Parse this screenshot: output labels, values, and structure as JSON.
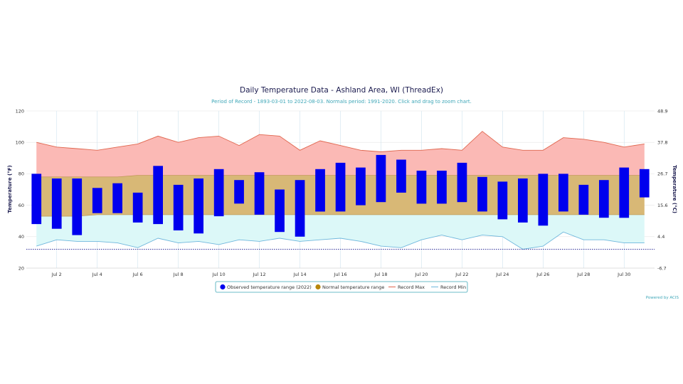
{
  "chart_data": {
    "type": "bar",
    "title": "Daily Temperature Data - Ashland Area, WI (ThreadEx)",
    "subtitle": "Period of Record - 1893-03-01 to 2022-08-03. Normals period: 1991-2020. Click and drag to zoom chart.",
    "ylabel": "Temperature (°F)",
    "y2label": "Temperature (°C)",
    "ylim": [
      20,
      120
    ],
    "yticks": [
      "20",
      "40",
      "60",
      "80",
      "100",
      "120"
    ],
    "y2ticks": [
      "-6.7",
      "4.4",
      "15.6",
      "26.7",
      "37.8",
      "48.9"
    ],
    "xlim": [
      0.5,
      31.5
    ],
    "xticks": [
      {
        "day": 2,
        "label": "Jul 2"
      },
      {
        "day": 4,
        "label": "Jul 4"
      },
      {
        "day": 6,
        "label": "Jul 6"
      },
      {
        "day": 8,
        "label": "Jul 8"
      },
      {
        "day": 10,
        "label": "Jul 10"
      },
      {
        "day": 12,
        "label": "Jul 12"
      },
      {
        "day": 14,
        "label": "Jul 14"
      },
      {
        "day": 16,
        "label": "Jul 16"
      },
      {
        "day": 18,
        "label": "Jul 18"
      },
      {
        "day": 20,
        "label": "Jul 20"
      },
      {
        "day": 22,
        "label": "Jul 22"
      },
      {
        "day": 24,
        "label": "Jul 24"
      },
      {
        "day": 26,
        "label": "Jul 26"
      },
      {
        "day": 28,
        "label": "Jul 28"
      },
      {
        "day": 30,
        "label": "Jul 30"
      }
    ],
    "freezing_line": 32,
    "days": [
      1,
      2,
      3,
      4,
      5,
      6,
      7,
      8,
      9,
      10,
      11,
      12,
      13,
      14,
      15,
      16,
      17,
      18,
      19,
      20,
      21,
      22,
      23,
      24,
      25,
      26,
      27,
      28,
      29,
      30,
      31
    ],
    "series": [
      {
        "name": "Observed temperature range (2022)",
        "color": "#0000ee",
        "low": [
          48,
          45,
          41,
          55,
          55,
          49,
          48,
          44,
          42,
          53,
          61,
          54,
          43,
          40,
          56,
          56,
          60,
          62,
          68,
          61,
          61,
          62,
          56,
          51,
          49,
          47,
          56,
          54,
          52,
          52,
          65
        ],
        "high": [
          80,
          77,
          77,
          71,
          74,
          68,
          85,
          73,
          77,
          83,
          76,
          81,
          70,
          76,
          83,
          87,
          84,
          92,
          89,
          82,
          82,
          87,
          78,
          75,
          77,
          80,
          80,
          73,
          76,
          84,
          83
        ]
      },
      {
        "name": "Normal temperature range",
        "color": "#b8860b",
        "low": [
          53,
          53,
          53,
          54,
          54,
          54,
          54,
          54,
          54,
          54,
          54,
          54,
          54,
          54,
          54,
          54,
          54,
          54,
          54,
          54,
          54,
          54,
          54,
          54,
          54,
          54,
          54,
          54,
          54,
          54,
          54
        ],
        "high": [
          78,
          78,
          78,
          78,
          78,
          79,
          79,
          79,
          79,
          79,
          79,
          79,
          79,
          79,
          79,
          79,
          79,
          79,
          79,
          79,
          79,
          79,
          79,
          79,
          79,
          79,
          79,
          79,
          79,
          79,
          79
        ]
      },
      {
        "name": "Record Max",
        "color": "#e0674f",
        "values": [
          100,
          97,
          96,
          95,
          97,
          99,
          104,
          100,
          103,
          104,
          98,
          105,
          104,
          95,
          101,
          98,
          95,
          94,
          95,
          95,
          96,
          95,
          107,
          97,
          95,
          95,
          103,
          102,
          100,
          97,
          99
        ]
      },
      {
        "name": "Record Min",
        "color": "#6fb7dc",
        "values": [
          34,
          38,
          37,
          37,
          36,
          33,
          39,
          36,
          37,
          35,
          38,
          37,
          39,
          37,
          38,
          39,
          37,
          34,
          33,
          38,
          41,
          38,
          41,
          40,
          32,
          34,
          43,
          38,
          38,
          36,
          36
        ]
      }
    ],
    "legend_position": "bottom-center",
    "grid": true
  },
  "credit": "Powered by ACIS"
}
